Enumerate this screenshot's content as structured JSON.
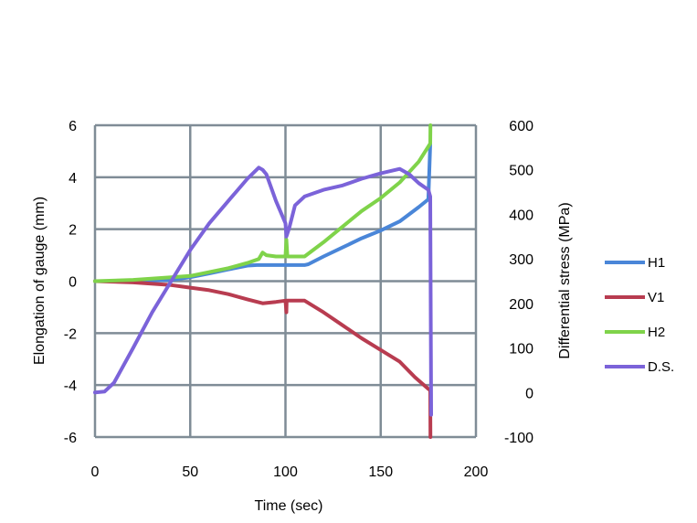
{
  "chart_data": {
    "type": "line",
    "xlabel": "Time (sec)",
    "ylabel": "Elongation of gauge (mm)",
    "y2label": "Differential stress (MPa)",
    "xlim": [
      0,
      200
    ],
    "ylim": [
      -6,
      6
    ],
    "y2lim": [
      -100,
      600
    ],
    "x_ticks": [
      0,
      50,
      100,
      150,
      200
    ],
    "y_ticks": [
      -6,
      -4,
      -2,
      0,
      2,
      4,
      6
    ],
    "y2_ticks": [
      -100,
      0,
      100,
      200,
      300,
      400,
      500,
      600
    ],
    "grid": true,
    "legend_position": "right",
    "series": [
      {
        "name": "H1",
        "axis": "left",
        "color": "#4a86d8",
        "x": [
          0,
          20,
          40,
          50,
          60,
          70,
          80,
          85,
          90,
          100,
          110,
          112,
          120,
          130,
          140,
          150,
          160,
          170,
          175,
          176
        ],
        "y": [
          0,
          0,
          0.05,
          0.15,
          0.3,
          0.45,
          0.6,
          0.62,
          0.62,
          0.62,
          0.62,
          0.65,
          0.95,
          1.3,
          1.65,
          1.95,
          2.3,
          2.85,
          3.15,
          5.3
        ]
      },
      {
        "name": "V1",
        "axis": "left",
        "color": "#b83c50",
        "x": [
          0,
          20,
          40,
          50,
          60,
          70,
          80,
          88,
          95,
          100,
          100.5,
          100.6,
          110,
          120,
          130,
          140,
          150,
          160,
          168,
          175,
          176,
          176.1
        ],
        "y": [
          0,
          -0.05,
          -0.15,
          -0.25,
          -0.35,
          -0.5,
          -0.7,
          -0.85,
          -0.8,
          -0.75,
          -1.2,
          -0.75,
          -0.75,
          -1.2,
          -1.7,
          -2.2,
          -2.65,
          -3.1,
          -3.7,
          -4.15,
          -4.2,
          -6
        ]
      },
      {
        "name": "H2",
        "axis": "left",
        "color": "#7fd34a",
        "x": [
          0,
          20,
          40,
          50,
          60,
          70,
          80,
          86,
          88,
          90,
          95,
          100,
          100.5,
          101,
          110,
          120,
          130,
          140,
          150,
          160,
          170,
          176,
          176.1
        ],
        "y": [
          0,
          0.05,
          0.15,
          0.2,
          0.35,
          0.5,
          0.7,
          0.85,
          1.1,
          1.0,
          0.95,
          0.95,
          1.6,
          0.95,
          0.95,
          1.5,
          2.1,
          2.7,
          3.2,
          3.8,
          4.6,
          5.3,
          6
        ]
      },
      {
        "name": "D.S.",
        "axis": "right",
        "color": "#7b63d9",
        "x": [
          0,
          5,
          10,
          20,
          30,
          40,
          50,
          60,
          70,
          80,
          86,
          88,
          90,
          95,
          100,
          100.5,
          102,
          105,
          110,
          120,
          130,
          140,
          150,
          160,
          165,
          170,
          175,
          176,
          176.5
        ],
        "y": [
          0,
          2,
          22,
          100,
          180,
          250,
          320,
          380,
          430,
          480,
          505,
          500,
          490,
          430,
          380,
          350,
          370,
          420,
          440,
          455,
          465,
          480,
          492,
          502,
          490,
          470,
          455,
          440,
          -50
        ]
      }
    ]
  }
}
